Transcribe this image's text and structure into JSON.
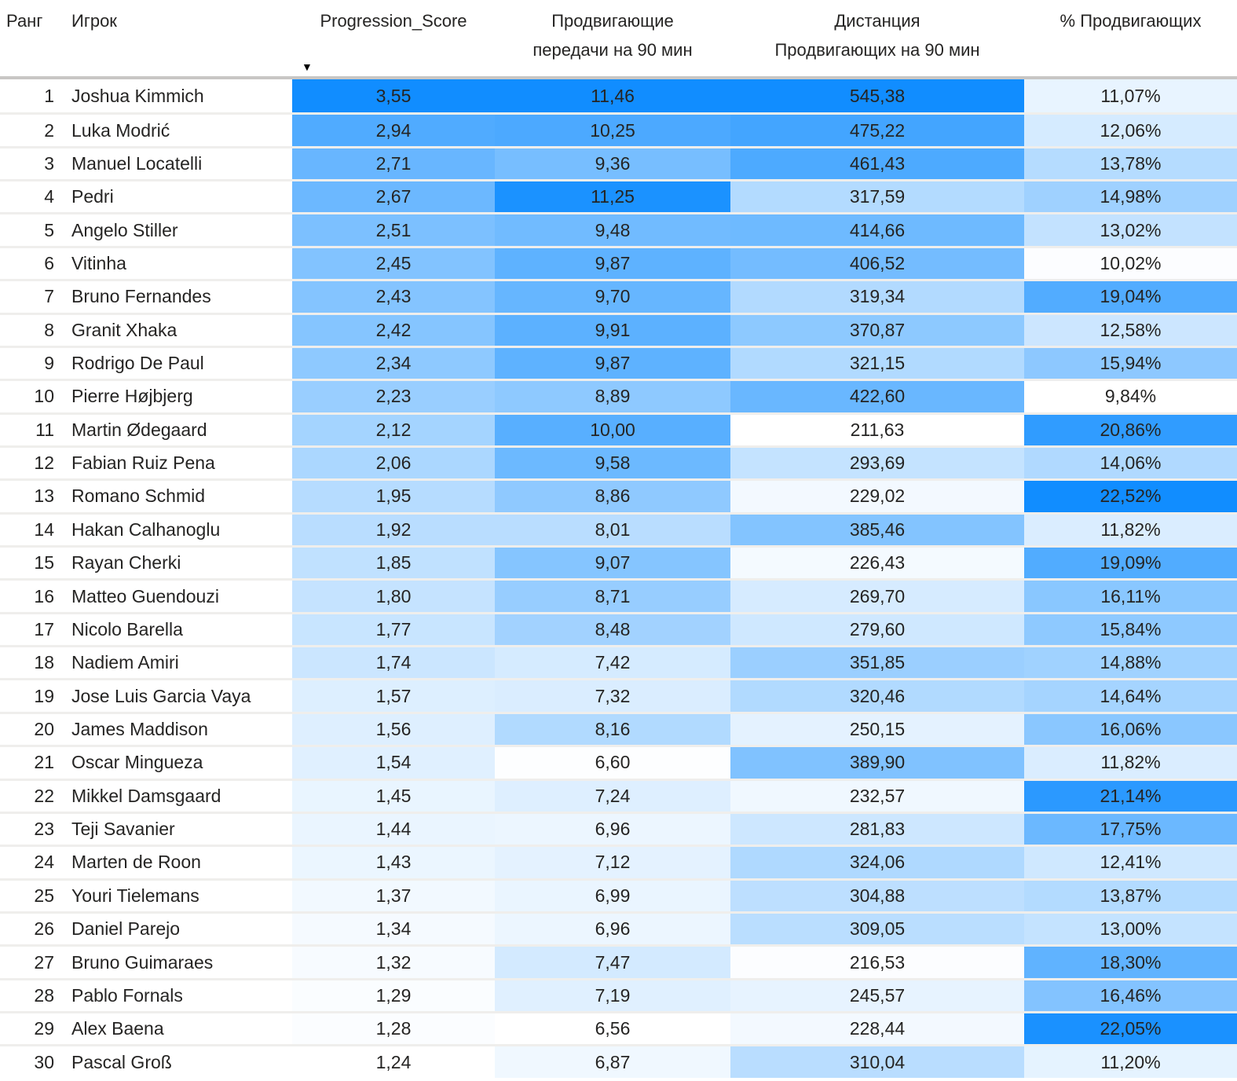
{
  "chart_data": {
    "type": "table",
    "title": "",
    "columns": [
      {
        "key": "rank",
        "label": "Ранг"
      },
      {
        "key": "player",
        "label": "Игрок"
      },
      {
        "key": "score",
        "label": "Progression_Score"
      },
      {
        "key": "passes",
        "label": "Продвигающие\nпередачи на 90 мин"
      },
      {
        "key": "distance",
        "label": "Дистанция\nПродвигающих на 90 мин"
      },
      {
        "key": "percent",
        "label": "% Продвигающих"
      }
    ],
    "sort": {
      "column": "Progression_Score",
      "direction": "desc",
      "icon": "▼"
    },
    "number_format": "comma-decimal, 2 digits; percent column suffixed with %",
    "heatmap": {
      "columns": [
        "score",
        "passes",
        "distance",
        "percent"
      ],
      "min_color": "#FFFFFF",
      "max_color": "#118DFF",
      "scale": "linear per-column min to max"
    },
    "text_color": "#252423",
    "header_divider_color": "#c8c6c4",
    "row_divider_color": "#efeeec",
    "rows": [
      {
        "rank": 1,
        "player": "Joshua Kimmich",
        "score": 3.55,
        "passes": 11.46,
        "distance": 545.38,
        "percent": 11.07
      },
      {
        "rank": 2,
        "player": "Luka Modrić",
        "score": 2.94,
        "passes": 10.25,
        "distance": 475.22,
        "percent": 12.06
      },
      {
        "rank": 3,
        "player": "Manuel Locatelli",
        "score": 2.71,
        "passes": 9.36,
        "distance": 461.43,
        "percent": 13.78
      },
      {
        "rank": 4,
        "player": "Pedri",
        "score": 2.67,
        "passes": 11.25,
        "distance": 317.59,
        "percent": 14.98
      },
      {
        "rank": 5,
        "player": "Angelo Stiller",
        "score": 2.51,
        "passes": 9.48,
        "distance": 414.66,
        "percent": 13.02
      },
      {
        "rank": 6,
        "player": "Vitinha",
        "score": 2.45,
        "passes": 9.87,
        "distance": 406.52,
        "percent": 10.02
      },
      {
        "rank": 7,
        "player": "Bruno Fernandes",
        "score": 2.43,
        "passes": 9.7,
        "distance": 319.34,
        "percent": 19.04
      },
      {
        "rank": 8,
        "player": "Granit Xhaka",
        "score": 2.42,
        "passes": 9.91,
        "distance": 370.87,
        "percent": 12.58
      },
      {
        "rank": 9,
        "player": "Rodrigo De Paul",
        "score": 2.34,
        "passes": 9.87,
        "distance": 321.15,
        "percent": 15.94
      },
      {
        "rank": 10,
        "player": "Pierre Højbjerg",
        "score": 2.23,
        "passes": 8.89,
        "distance": 422.6,
        "percent": 9.84
      },
      {
        "rank": 11,
        "player": "Martin Ødegaard",
        "score": 2.12,
        "passes": 10.0,
        "distance": 211.63,
        "percent": 20.86
      },
      {
        "rank": 12,
        "player": "Fabian Ruiz Pena",
        "score": 2.06,
        "passes": 9.58,
        "distance": 293.69,
        "percent": 14.06
      },
      {
        "rank": 13,
        "player": "Romano Schmid",
        "score": 1.95,
        "passes": 8.86,
        "distance": 229.02,
        "percent": 22.52
      },
      {
        "rank": 14,
        "player": "Hakan Calhanoglu",
        "score": 1.92,
        "passes": 8.01,
        "distance": 385.46,
        "percent": 11.82
      },
      {
        "rank": 15,
        "player": "Rayan Cherki",
        "score": 1.85,
        "passes": 9.07,
        "distance": 226.43,
        "percent": 19.09
      },
      {
        "rank": 16,
        "player": "Matteo Guendouzi",
        "score": 1.8,
        "passes": 8.71,
        "distance": 269.7,
        "percent": 16.11
      },
      {
        "rank": 17,
        "player": "Nicolo Barella",
        "score": 1.77,
        "passes": 8.48,
        "distance": 279.6,
        "percent": 15.84
      },
      {
        "rank": 18,
        "player": "Nadiem Amiri",
        "score": 1.74,
        "passes": 7.42,
        "distance": 351.85,
        "percent": 14.88
      },
      {
        "rank": 19,
        "player": "Jose Luis Garcia Vaya",
        "score": 1.57,
        "passes": 7.32,
        "distance": 320.46,
        "percent": 14.64
      },
      {
        "rank": 20,
        "player": "James Maddison",
        "score": 1.56,
        "passes": 8.16,
        "distance": 250.15,
        "percent": 16.06
      },
      {
        "rank": 21,
        "player": "Oscar Mingueza",
        "score": 1.54,
        "passes": 6.6,
        "distance": 389.9,
        "percent": 11.82
      },
      {
        "rank": 22,
        "player": "Mikkel Damsgaard",
        "score": 1.45,
        "passes": 7.24,
        "distance": 232.57,
        "percent": 21.14
      },
      {
        "rank": 23,
        "player": "Teji Savanier",
        "score": 1.44,
        "passes": 6.96,
        "distance": 281.83,
        "percent": 17.75
      },
      {
        "rank": 24,
        "player": "Marten de Roon",
        "score": 1.43,
        "passes": 7.12,
        "distance": 324.06,
        "percent": 12.41
      },
      {
        "rank": 25,
        "player": "Youri Tielemans",
        "score": 1.37,
        "passes": 6.99,
        "distance": 304.88,
        "percent": 13.87
      },
      {
        "rank": 26,
        "player": "Daniel Parejo",
        "score": 1.34,
        "passes": 6.96,
        "distance": 309.05,
        "percent": 13.0
      },
      {
        "rank": 27,
        "player": "Bruno Guimaraes",
        "score": 1.32,
        "passes": 7.47,
        "distance": 216.53,
        "percent": 18.3
      },
      {
        "rank": 28,
        "player": "Pablo Fornals",
        "score": 1.29,
        "passes": 7.19,
        "distance": 245.57,
        "percent": 16.46
      },
      {
        "rank": 29,
        "player": "Alex Baena",
        "score": 1.28,
        "passes": 6.56,
        "distance": 228.44,
        "percent": 22.05
      },
      {
        "rank": 30,
        "player": "Pascal Groß",
        "score": 1.24,
        "passes": 6.87,
        "distance": 310.04,
        "percent": 11.2
      }
    ]
  }
}
